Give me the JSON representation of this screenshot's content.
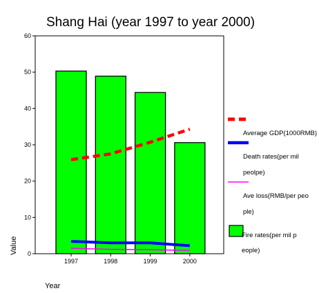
{
  "chart_data": {
    "type": "bar",
    "title": "Shang Hai   (year 1997  to year 2000)",
    "xlabel": "Year",
    "ylabel": "Value",
    "categories": [
      "1997",
      "1998",
      "1999",
      "2000"
    ],
    "ylim": [
      0,
      60
    ],
    "yticks": [
      0,
      10,
      20,
      30,
      40,
      50,
      60
    ],
    "grid": false,
    "legend_position": "right",
    "bar_series": {
      "name": "Fire rates(per mil people)",
      "legend_lines": [
        "Fire rates(per mil p",
        "eople)"
      ],
      "values": [
        50.3,
        48.9,
        44.4,
        30.6
      ],
      "color": "#00ff00"
    },
    "line_series": [
      {
        "name": "Average GDP(1000RMB)",
        "legend_lines": [
          "Average GDP(1000RMB)"
        ],
        "values": [
          25.9,
          27.5,
          30.7,
          34.3
        ],
        "color": "#ff0000",
        "style": "dashed"
      },
      {
        "name": "Death rates(per mil peolpe)",
        "legend_lines": [
          "Death rates(per mil",
          "peolpe)"
        ],
        "values": [
          3.4,
          3.0,
          3.0,
          2.2
        ],
        "color": "#0000ff",
        "style": "solid"
      },
      {
        "name": "Ave loss(RMB/per people)",
        "legend_lines": [
          "Ave loss(RMB/per peo",
          "ple)"
        ],
        "values": [
          1.5,
          1.2,
          1.1,
          0.9
        ],
        "color": "#ff00ff",
        "style": "solid"
      }
    ]
  }
}
